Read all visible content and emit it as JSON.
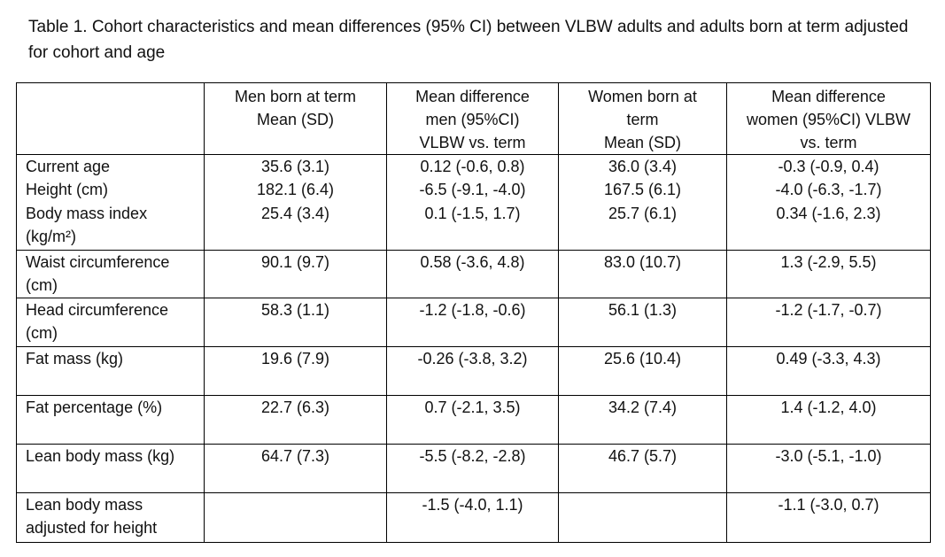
{
  "caption": "Table 1. Cohort characteristics and mean differences (95% CI) between VLBW adults and adults born at term adjusted for cohort and age",
  "columns": [
    "",
    "Men born at term\nMean (SD)",
    "Mean difference\nmen (95%CI)\nVLBW vs. term",
    "Women born at\nterm\nMean (SD)",
    "Mean difference\nwomen (95%CI) VLBW\nvs. term"
  ],
  "rows": [
    {
      "label": "Current age",
      "cells": [
        "35.6 (3.1)",
        "0.12 (-0.6, 0.8)",
        "36.0 (3.4)",
        "-0.3 (-0.9, 0.4)"
      ]
    },
    {
      "label": "Height (cm)",
      "cells": [
        "182.1 (6.4)",
        "-6.5 (-9.1, -4.0)",
        "167.5 (6.1)",
        "-4.0 (-6.3, -1.7)"
      ]
    },
    {
      "label": "Body mass index\n(kg/m²)",
      "cells": [
        "25.4 (3.4)",
        "0.1 (-1.5, 1.7)",
        "25.7 (6.1)",
        "0.34 (-1.6, 2.3)"
      ]
    },
    {
      "label": "Waist circumference\n(cm)",
      "cells": [
        "90.1 (9.7)",
        "0.58 (-3.6, 4.8)",
        "83.0 (10.7)",
        "1.3 (-2.9, 5.5)"
      ]
    },
    {
      "label": "Head circumference\n(cm)",
      "cells": [
        "58.3 (1.1)",
        "-1.2 (-1.8, -0.6)",
        "56.1 (1.3)",
        "-1.2 (-1.7, -0.7)"
      ]
    },
    {
      "label": "Fat mass (kg)",
      "cells": [
        "19.6 (7.9)",
        "-0.26 (-3.8, 3.2)",
        "25.6 (10.4)",
        "0.49 (-3.3, 4.3)"
      ]
    },
    {
      "label": "Fat percentage (%)",
      "cells": [
        "22.7 (6.3)",
        "0.7 (-2.1, 3.5)",
        "34.2 (7.4)",
        "1.4 (-1.2, 4.0)"
      ]
    },
    {
      "label": "Lean body mass (kg)",
      "cells": [
        "64.7 (7.3)",
        "-5.5 (-8.2, -2.8)",
        "46.7 (5.7)",
        "-3.0 (-5.1, -1.0)"
      ]
    },
    {
      "label": "Lean body mass\nadjusted for height",
      "cells": [
        "",
        "-1.5 (-4.0, 1.1)",
        "",
        "-1.1 (-3.0, 0.7)"
      ]
    }
  ]
}
